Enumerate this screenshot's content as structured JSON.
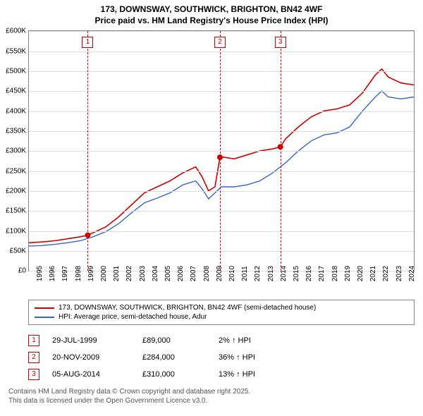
{
  "title": {
    "line1": "173, DOWNSWAY, SOUTHWICK, BRIGHTON, BN42 4WF",
    "line2": "Price paid vs. HM Land Registry's House Price Index (HPI)"
  },
  "chart": {
    "type": "line",
    "background_color": "#ffffff",
    "grid_color": "#dddddd",
    "border_color": "#888888",
    "xlim": [
      1995,
      2025
    ],
    "ylim": [
      0,
      600000
    ],
    "y_ticks": [
      0,
      50000,
      100000,
      150000,
      200000,
      250000,
      300000,
      350000,
      400000,
      450000,
      500000,
      550000,
      600000
    ],
    "y_tick_labels": [
      "£0",
      "£50K",
      "£100K",
      "£150K",
      "£200K",
      "£250K",
      "£300K",
      "£350K",
      "£400K",
      "£450K",
      "£500K",
      "£550K",
      "£600K"
    ],
    "x_ticks": [
      1995,
      1996,
      1997,
      1998,
      1999,
      2000,
      2001,
      2002,
      2003,
      2004,
      2005,
      2006,
      2007,
      2008,
      2009,
      2010,
      2011,
      2012,
      2013,
      2014,
      2015,
      2016,
      2017,
      2018,
      2019,
      2020,
      2021,
      2022,
      2023,
      2024
    ],
    "x_tick_labels": [
      "1995",
      "1996",
      "1997",
      "1998",
      "1999",
      "2000",
      "2001",
      "2002",
      "2003",
      "2004",
      "2005",
      "2006",
      "2007",
      "2008",
      "2009",
      "2010",
      "2011",
      "2012",
      "2013",
      "2014",
      "2015",
      "2016",
      "2017",
      "2018",
      "2019",
      "2020",
      "2021",
      "2022",
      "2023",
      "2024"
    ],
    "title_fontsize": 12,
    "label_fontsize": 10,
    "series": [
      {
        "name": "173, DOWNSWAY, SOUTHWICK, BRIGHTON, BN42 4WF (semi-detached house)",
        "color": "#cc0000",
        "line_width": 1.6,
        "data": [
          [
            1995.0,
            70000
          ],
          [
            1996.0,
            72000
          ],
          [
            1997.0,
            75000
          ],
          [
            1998.0,
            80000
          ],
          [
            1999.0,
            85000
          ],
          [
            1999.58,
            89000
          ],
          [
            2000.0,
            95000
          ],
          [
            2001.0,
            110000
          ],
          [
            2002.0,
            135000
          ],
          [
            2003.0,
            165000
          ],
          [
            2004.0,
            195000
          ],
          [
            2005.0,
            210000
          ],
          [
            2006.0,
            225000
          ],
          [
            2007.0,
            245000
          ],
          [
            2008.0,
            260000
          ],
          [
            2008.5,
            235000
          ],
          [
            2009.0,
            200000
          ],
          [
            2009.5,
            210000
          ],
          [
            2009.89,
            284000
          ],
          [
            2010.0,
            285000
          ],
          [
            2011.0,
            280000
          ],
          [
            2012.0,
            290000
          ],
          [
            2013.0,
            300000
          ],
          [
            2014.0,
            305000
          ],
          [
            2014.6,
            310000
          ],
          [
            2015.0,
            330000
          ],
          [
            2016.0,
            360000
          ],
          [
            2017.0,
            385000
          ],
          [
            2018.0,
            400000
          ],
          [
            2019.0,
            405000
          ],
          [
            2020.0,
            415000
          ],
          [
            2021.0,
            445000
          ],
          [
            2022.0,
            490000
          ],
          [
            2022.5,
            505000
          ],
          [
            2023.0,
            485000
          ],
          [
            2024.0,
            470000
          ],
          [
            2025.0,
            465000
          ]
        ]
      },
      {
        "name": "HPI: Average price, semi-detached house, Adur",
        "color": "#3366cc",
        "line_width": 1.4,
        "data": [
          [
            1995.0,
            62000
          ],
          [
            1996.0,
            63000
          ],
          [
            1997.0,
            66000
          ],
          [
            1998.0,
            70000
          ],
          [
            1999.0,
            75000
          ],
          [
            2000.0,
            85000
          ],
          [
            2001.0,
            98000
          ],
          [
            2002.0,
            118000
          ],
          [
            2003.0,
            145000
          ],
          [
            2004.0,
            170000
          ],
          [
            2005.0,
            182000
          ],
          [
            2006.0,
            195000
          ],
          [
            2007.0,
            215000
          ],
          [
            2008.0,
            225000
          ],
          [
            2008.5,
            205000
          ],
          [
            2009.0,
            180000
          ],
          [
            2009.5,
            195000
          ],
          [
            2010.0,
            210000
          ],
          [
            2011.0,
            210000
          ],
          [
            2012.0,
            215000
          ],
          [
            2013.0,
            225000
          ],
          [
            2014.0,
            245000
          ],
          [
            2015.0,
            270000
          ],
          [
            2016.0,
            300000
          ],
          [
            2017.0,
            325000
          ],
          [
            2018.0,
            340000
          ],
          [
            2019.0,
            345000
          ],
          [
            2020.0,
            360000
          ],
          [
            2021.0,
            400000
          ],
          [
            2022.0,
            435000
          ],
          [
            2022.5,
            450000
          ],
          [
            2023.0,
            435000
          ],
          [
            2024.0,
            430000
          ],
          [
            2025.0,
            435000
          ]
        ]
      }
    ],
    "sale_points": [
      {
        "x": 1999.58,
        "y": 89000
      },
      {
        "x": 2009.89,
        "y": 284000
      },
      {
        "x": 2014.6,
        "y": 310000
      }
    ],
    "events": [
      {
        "num": "1",
        "x": 1999.58,
        "color": "#cc0000"
      },
      {
        "num": "2",
        "x": 2009.89,
        "color": "#cc0000"
      },
      {
        "num": "3",
        "x": 2014.6,
        "color": "#cc0000"
      }
    ]
  },
  "legend": {
    "items": [
      {
        "label": "173, DOWNSWAY, SOUTHWICK, BRIGHTON, BN42 4WF (semi-detached house)",
        "color": "#cc0000"
      },
      {
        "label": "HPI: Average price, semi-detached house, Adur",
        "color": "#3366cc"
      }
    ]
  },
  "event_table": [
    {
      "num": "1",
      "color": "#cc0000",
      "date": "29-JUL-1999",
      "price": "£89,000",
      "hpi": "2% ↑ HPI"
    },
    {
      "num": "2",
      "color": "#cc0000",
      "date": "20-NOV-2009",
      "price": "£284,000",
      "hpi": "36% ↑ HPI"
    },
    {
      "num": "3",
      "color": "#cc0000",
      "date": "05-AUG-2014",
      "price": "£310,000",
      "hpi": "13% ↑ HPI"
    }
  ],
  "attribution": {
    "line1": "Contains HM Land Registry data © Crown copyright and database right 2025.",
    "line2": "This data is licensed under the Open Government Licence v3.0."
  }
}
